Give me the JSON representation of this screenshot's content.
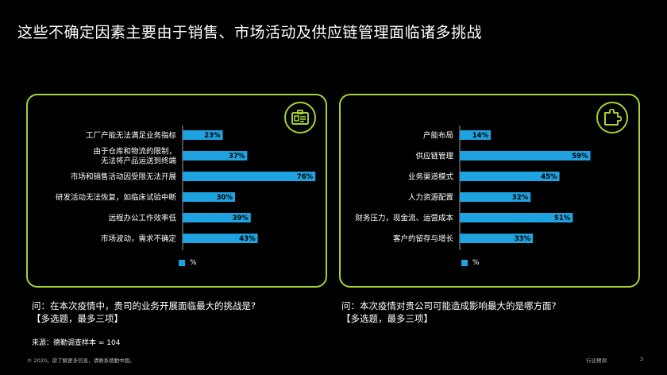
{
  "title": "这些不确定因素主要由于销售、市场活动及供应链管理面临诸多挑战",
  "colors": {
    "bar": "#1fa2e0",
    "frame": "#a4d233",
    "background": "#000000"
  },
  "chart_data": [
    {
      "type": "bar",
      "orientation": "horizontal",
      "icon": "id-card-icon",
      "categories": [
        [
          "工厂产能无法满足业务指标"
        ],
        [
          "由于仓库和物流的限制，",
          "无法将产品运送到终端"
        ],
        [
          "市场和销售活动因受限无法开展"
        ],
        [
          "研发活动无法恢复，如临床试验中断"
        ],
        [
          "远程办公工作效率低"
        ],
        [
          "市场波动，需求不确定"
        ]
      ],
      "values": [
        23,
        37,
        76,
        30,
        39,
        43
      ],
      "value_labels": [
        "23%",
        "37%",
        "76%",
        "30%",
        "39%",
        "43%"
      ],
      "legend": "%",
      "xlim": [
        0,
        100
      ]
    },
    {
      "type": "bar",
      "orientation": "horizontal",
      "icon": "puzzle-icon",
      "categories": [
        [
          "产能布局"
        ],
        [
          "供应链管理"
        ],
        [
          "业务渠道模式"
        ],
        [
          "人力资源配置"
        ],
        [
          "财务压力，现金流、运营成本"
        ],
        [
          "客户的留存与增长"
        ]
      ],
      "values": [
        14,
        59,
        45,
        32,
        51,
        33
      ],
      "value_labels": [
        "14%",
        "59%",
        "45%",
        "32%",
        "51%",
        "33%"
      ],
      "legend": "%",
      "xlim": [
        0,
        100
      ]
    }
  ],
  "questions": {
    "left": {
      "line1": "问：在本次疫情中，贵司的业务开展面临最大的挑战是?",
      "line2": "【多选题，最多三项】"
    },
    "right": {
      "line1": "问：本次疫情对贵公司可能造成影响最大的是哪方面?",
      "line2": "【多选题，最多三项】"
    }
  },
  "source": "来源：德勤调查样本 = 104",
  "footer": {
    "left": "© 2020。欲了解更多信息，请联系德勤中国。",
    "right": "行业预测",
    "page": "3"
  }
}
